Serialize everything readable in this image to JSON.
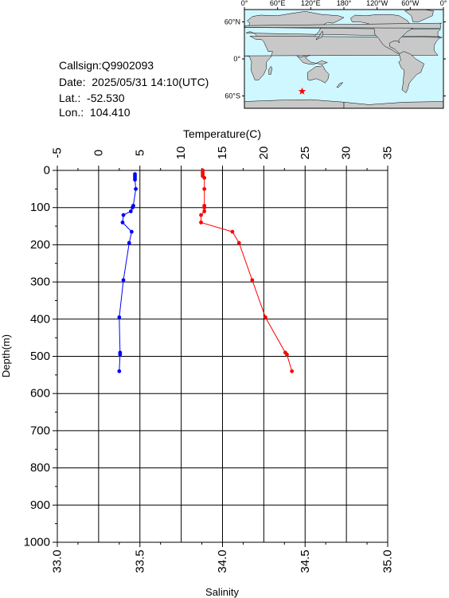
{
  "info": {
    "callsign_label": "Callsign:",
    "callsign": "Q9902093",
    "date_label": "Date:",
    "date": "2025/05/31 14:10(UTC)",
    "lat_label": "Lat.:",
    "lat": "-52.530",
    "lon_label": "Lon.:",
    "lon": "104.410"
  },
  "map": {
    "lon_labels": [
      "0°",
      "60°E",
      "120°E",
      "180°",
      "120°W",
      "60°W",
      "0°"
    ],
    "lat_labels": [
      "60°N",
      "0°",
      "60°S"
    ],
    "marker_lon": 104.41,
    "marker_lat": -52.53,
    "ocean_color": "#cff7ff",
    "land_color": "#c8c8c8",
    "marker_color": "#ff0000"
  },
  "chart_data": {
    "type": "line",
    "top_axis_label": "Temperature(C)",
    "bottom_axis_label": "Salinity",
    "y_axis_label": "Depth(m)",
    "temperature_range": [
      -5,
      35
    ],
    "temperature_ticks": [
      "-5",
      "0",
      "5",
      "10",
      "15",
      "20",
      "25",
      "30",
      "35"
    ],
    "salinity_range": [
      33.0,
      35.0
    ],
    "salinity_ticks": [
      "33.0",
      "33.5",
      "34.0",
      "34.5",
      "35.0"
    ],
    "depth_range": [
      0,
      1000
    ],
    "depth_ticks": [
      "0",
      "100",
      "200",
      "300",
      "400",
      "500",
      "600",
      "700",
      "800",
      "900",
      "1000"
    ],
    "grid": true,
    "series": [
      {
        "name": "Temperature",
        "color": "#0000ff",
        "depth": [
          10,
          15,
          20,
          25,
          50,
          95,
          100,
          110,
          120,
          140,
          165,
          195,
          295,
          395,
          490,
          495,
          540
        ],
        "value": [
          4.4,
          4.4,
          4.4,
          4.4,
          4.5,
          4.2,
          4.1,
          3.9,
          3.0,
          2.9,
          4.0,
          3.7,
          3.0,
          2.5,
          2.6,
          2.6,
          2.5
        ]
      },
      {
        "name": "Salinity",
        "color": "#ff0000",
        "depth": [
          0,
          5,
          10,
          15,
          20,
          50,
          95,
          100,
          110,
          120,
          140,
          165,
          195,
          295,
          395,
          490,
          495,
          540
        ],
        "value": [
          33.88,
          33.88,
          33.88,
          33.88,
          33.89,
          33.89,
          33.89,
          33.89,
          33.89,
          33.87,
          33.87,
          34.06,
          34.1,
          34.18,
          34.26,
          34.38,
          34.39,
          34.42
        ]
      }
    ]
  }
}
